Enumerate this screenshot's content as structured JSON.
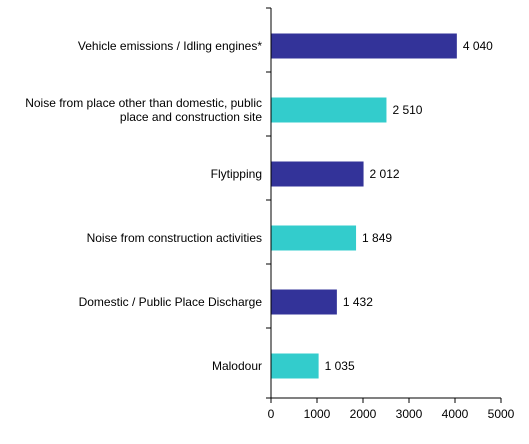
{
  "chart_data": {
    "type": "bar",
    "orientation": "horizontal",
    "categories": [
      [
        "Vehicle emissions / Idling engines*"
      ],
      [
        "Noise from place other than domestic, public",
        "place and construction site"
      ],
      [
        "Flytipping"
      ],
      [
        "Noise from construction activities"
      ],
      [
        "Domestic / Public Place Discharge"
      ],
      [
        "Malodour"
      ]
    ],
    "values": [
      4040,
      2510,
      2012,
      1849,
      1432,
      1035
    ],
    "value_labels": [
      "4 040",
      "2 510",
      "2 012",
      "1 849",
      "1 432",
      "1 035"
    ],
    "bar_colors": [
      "#333399",
      "#33CCCC",
      "#333399",
      "#33CCCC",
      "#333399",
      "#33CCCC"
    ],
    "xlim": [
      0,
      5000
    ],
    "xticks": [
      0,
      1000,
      2000,
      3000,
      4000,
      5000
    ],
    "title": "",
    "xlabel": "",
    "ylabel": "",
    "grid": false,
    "legend": false
  }
}
